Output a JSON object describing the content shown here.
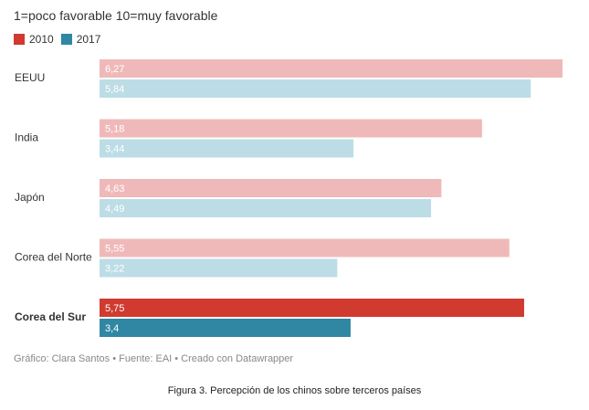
{
  "colors": {
    "series_2010": "#d03a2f",
    "series_2010_light": "#f0b9b9",
    "series_2017": "#2f87a3",
    "series_2017_light": "#bcdde6",
    "label_light": "#ffffff",
    "category_text": "#333333"
  },
  "chart_data": {
    "type": "bar",
    "orientation": "horizontal",
    "subtitle": "1=poco favorable 10=muy favorable",
    "legend_position": "top-left",
    "categories": [
      "EEUU",
      "India",
      "Japón",
      "Corea del Norte",
      "Corea del Sur"
    ],
    "highlighted_category": "Corea del Sur",
    "series": [
      {
        "name": "2010",
        "values": [
          6.27,
          5.18,
          4.63,
          5.55,
          5.75
        ],
        "labels": [
          "6,27",
          "5,18",
          "4,63",
          "5,55",
          "5,75"
        ]
      },
      {
        "name": "2017",
        "values": [
          5.84,
          3.44,
          4.49,
          3.22,
          3.4
        ],
        "labels": [
          "5,84",
          "3,44",
          "4,49",
          "3,22",
          "3,4"
        ]
      }
    ],
    "xlim": [
      0,
      6.27
    ],
    "grid": false
  },
  "footer": {
    "text": "Gráfico: Clara Santos  • Fuente: EAI • Creado con Datawrapper"
  },
  "caption": "Figura 3. Percepción de los chinos sobre terceros países"
}
